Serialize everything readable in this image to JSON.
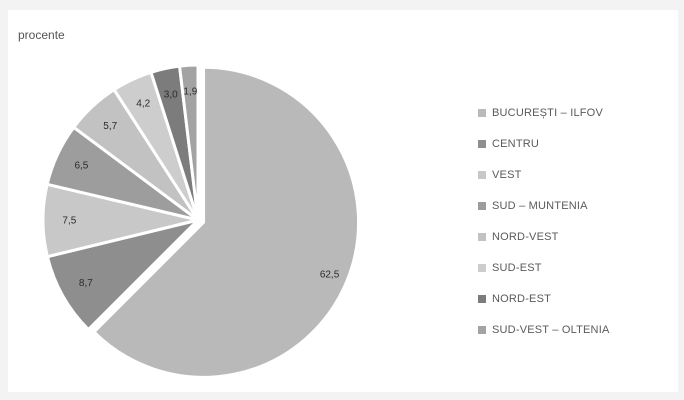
{
  "chart_data": {
    "type": "pie",
    "title": "",
    "unit_label": "procente",
    "legend_position": "right",
    "slices": [
      {
        "name": "BUCUREȘTI – ILFOV",
        "value": 62.5,
        "label": "62,5",
        "color": "#b9b9b9"
      },
      {
        "name": "CENTRU",
        "value": 8.7,
        "label": "8,7",
        "color": "#8e8e8e"
      },
      {
        "name": "VEST",
        "value": 7.5,
        "label": "7,5",
        "color": "#c8c8c8"
      },
      {
        "name": "SUD – MUNTENIA",
        "value": 6.5,
        "label": "6,5",
        "color": "#9d9d9d"
      },
      {
        "name": "NORD-VEST",
        "value": 5.7,
        "label": "5,7",
        "color": "#c2c2c2"
      },
      {
        "name": "SUD-EST",
        "value": 4.2,
        "label": "4,2",
        "color": "#cdcdcd"
      },
      {
        "name": "NORD-EST",
        "value": 3.0,
        "label": "3,0",
        "color": "#7c7c7c"
      },
      {
        "name": "SUD-VEST – OLTENIA",
        "value": 1.9,
        "label": "1,9",
        "color": "#a3a3a3"
      }
    ]
  }
}
